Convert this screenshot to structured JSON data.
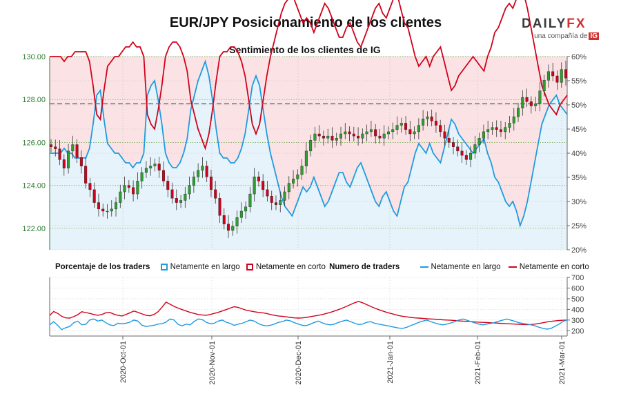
{
  "header": {
    "title": "EUR/JPY Posicionamiento de los clientes",
    "subtitle": "Sentimiento de los clientes de IG"
  },
  "logo": {
    "brand_a": "DAILY",
    "brand_b": "FX",
    "tagline": "una compañía de",
    "tagline_mark": "IG"
  },
  "legend": {
    "pct_title": "Porcentaje de los traders",
    "pct_long": "Netamente en largo",
    "pct_short": "Netamente en corto",
    "num_title": "Numero de traders",
    "num_long": "Netamente en largo",
    "num_short": "Netamente en corto"
  },
  "colors": {
    "long": "#1e9be0",
    "short": "#d0021b",
    "long_fill": "#e6f3fb",
    "short_fill": "#fbe3e5",
    "up": "#2e9e2e",
    "down": "#d0021b",
    "price_axis": "#2e7d32"
  },
  "chart_data": [
    {
      "type": "candlestick+area",
      "title": "Sentimiento de los clientes de IG",
      "left_axis": {
        "ylim": [
          121,
          130
        ],
        "ticks": [
          "122.00",
          "124.00",
          "126.00",
          "128.00",
          "130.00"
        ]
      },
      "right_axis": {
        "ylim": [
          20,
          60
        ],
        "ticks": [
          "20%",
          "25%",
          "30%",
          "35%",
          "40%",
          "45%",
          "50%",
          "55%",
          "60%"
        ]
      },
      "x_labels": [
        "2020-Oct-01",
        "2020-Nov-01",
        "2020-Dec-01",
        "2021-Jan-01",
        "2021-Feb-01",
        "2021-Mar-01"
      ],
      "current_price": 127.8,
      "price_close": [
        125.8,
        125.7,
        125.2,
        124.8,
        125.6,
        125.9,
        125.3,
        124.9,
        124.1,
        123.8,
        123.2,
        122.9,
        122.8,
        122.8,
        122.9,
        123.2,
        123.7,
        124.0,
        123.9,
        123.6,
        124.2,
        124.6,
        124.8,
        124.9,
        125.0,
        124.7,
        124.2,
        123.8,
        123.4,
        123.2,
        123.3,
        123.6,
        124.0,
        124.4,
        124.7,
        124.9,
        124.4,
        123.8,
        123.4,
        122.6,
        122.2,
        121.9,
        122.1,
        122.5,
        122.8,
        123.0,
        123.6,
        124.4,
        124.2,
        123.8,
        123.5,
        123.2,
        123.1,
        123.3,
        123.7,
        124.1,
        124.3,
        124.5,
        124.9,
        125.6,
        126.1,
        126.4,
        126.3,
        126.2,
        126.3,
        126.1,
        126.2,
        126.4,
        126.5,
        126.4,
        126.3,
        126.2,
        126.4,
        126.5,
        126.6,
        126.3,
        126.2,
        126.4,
        126.5,
        126.6,
        126.8,
        126.9,
        126.6,
        126.4,
        126.5,
        126.8,
        127.1,
        127.2,
        127.0,
        126.8,
        126.5,
        126.2,
        126.0,
        125.8,
        125.6,
        125.4,
        125.2,
        125.5,
        125.9,
        126.2,
        126.5,
        126.6,
        126.7,
        126.6,
        126.5,
        126.7,
        126.9,
        127.2,
        127.6,
        128.1,
        127.9,
        127.7,
        127.8,
        128.4,
        128.9,
        129.3,
        129.1,
        128.8,
        129.4,
        129.0
      ],
      "pct_long": [
        40,
        40,
        40,
        40,
        41,
        40,
        40,
        39,
        39,
        39,
        39,
        41,
        46,
        52,
        53,
        47,
        42,
        41,
        40,
        40,
        39,
        38,
        38,
        37,
        38,
        38,
        40,
        52,
        54,
        55,
        51,
        46,
        40,
        38,
        37,
        37,
        38,
        40,
        43,
        49,
        52,
        55,
        57,
        59,
        56,
        51,
        45,
        40,
        39,
        39,
        38,
        38,
        39,
        41,
        44,
        49,
        54,
        56,
        54,
        49,
        44,
        40,
        37,
        34,
        31,
        29,
        28,
        27,
        29,
        31,
        33,
        32,
        33,
        35,
        33,
        31,
        29,
        30,
        32,
        34,
        36,
        36,
        34,
        33,
        35,
        37,
        38,
        36,
        34,
        32,
        30,
        29,
        31,
        32,
        30,
        28,
        27,
        30,
        33,
        34,
        37,
        40,
        42,
        41,
        40,
        42,
        40,
        39,
        38,
        41,
        44,
        47,
        46,
        44,
        43,
        42,
        41,
        40,
        41,
        42,
        43,
        40,
        38,
        35,
        34,
        32,
        30,
        29,
        30,
        28,
        25,
        27,
        30,
        34,
        38,
        42,
        46,
        48,
        50,
        51,
        52,
        50,
        49,
        48
      ],
      "long_count": [
        255,
        285,
        250,
        210,
        228,
        240,
        275,
        290,
        255,
        260,
        300,
        310,
        290,
        300,
        275,
        255,
        248,
        270,
        265,
        270,
        280,
        300,
        290,
        252,
        240,
        245,
        250,
        262,
        265,
        280,
        310,
        300,
        260,
        245,
        262,
        255,
        285,
        310,
        305,
        280,
        265,
        270,
        290,
        300,
        280,
        268,
        250,
        262,
        270,
        285,
        300,
        290,
        268,
        252,
        245,
        250,
        262,
        278,
        285,
        300,
        292,
        275,
        262,
        250,
        248,
        262,
        278,
        290,
        272,
        260,
        255,
        262,
        278,
        290,
        300,
        285,
        270,
        258,
        262,
        278,
        285,
        270,
        262,
        255,
        248,
        240,
        232,
        225,
        222,
        232,
        248,
        262,
        278,
        290,
        300,
        285,
        272,
        262,
        255,
        262,
        272,
        285,
        300,
        310,
        298,
        285,
        272,
        262,
        255,
        262,
        268,
        278,
        290,
        300,
        310,
        298,
        288,
        275,
        268,
        262,
        255,
        245,
        232,
        222,
        215,
        222,
        242,
        262,
        288,
        300
      ],
      "short_count": [
        342,
        380,
        362,
        335,
        320,
        318,
        332,
        350,
        378,
        370,
        362,
        352,
        345,
        352,
        368,
        372,
        355,
        345,
        338,
        352,
        368,
        385,
        372,
        358,
        345,
        340,
        352,
        378,
        420,
        468,
        448,
        428,
        412,
        398,
        385,
        372,
        362,
        352,
        348,
        345,
        352,
        362,
        372,
        385,
        398,
        412,
        425,
        418,
        405,
        392,
        385,
        378,
        372,
        368,
        362,
        352,
        345,
        338,
        335,
        330,
        325,
        320,
        318,
        320,
        325,
        332,
        338,
        345,
        352,
        362,
        372,
        385,
        398,
        412,
        428,
        445,
        462,
        475,
        462,
        445,
        428,
        412,
        398,
        385,
        372,
        362,
        352,
        342,
        335,
        330,
        325,
        320,
        318,
        315,
        312,
        310,
        308,
        305,
        302,
        300,
        298,
        295,
        292,
        290,
        288,
        285,
        282,
        280,
        278,
        276,
        274,
        272,
        270,
        268,
        266,
        264,
        262,
        260,
        258,
        256,
        258,
        262,
        268,
        275,
        282,
        288,
        292,
        296,
        298,
        300
      ]
    },
    {
      "type": "line",
      "title": "Numero de traders",
      "right_axis": {
        "ylim": [
          150,
          700
        ],
        "ticks": [
          "200",
          "300",
          "400",
          "500",
          "600",
          "700"
        ]
      }
    }
  ]
}
